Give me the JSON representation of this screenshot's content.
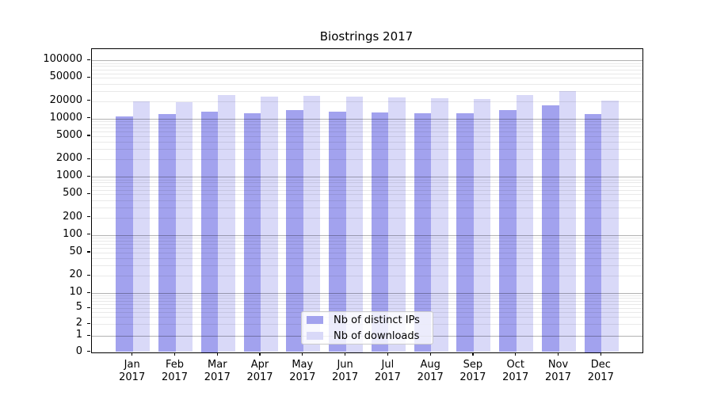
{
  "title": "Biostrings 2017",
  "colors": {
    "distinct_ips": "#a2a2ee",
    "downloads": "#d9d9f8",
    "grid_major": "rgba(0,0,0,0.30)",
    "grid_minor": "rgba(0,0,0,0.085)",
    "axis": "#000000"
  },
  "legend": {
    "items": [
      {
        "label": "Nb of distinct IPs",
        "color_key": "distinct_ips"
      },
      {
        "label": "Nb of downloads",
        "color_key": "downloads"
      }
    ]
  },
  "y_axis": {
    "ticks": [
      {
        "label": "100000",
        "value": 100000
      },
      {
        "label": "50000",
        "value": 50000
      },
      {
        "label": "20000",
        "value": 20000
      },
      {
        "label": "10000",
        "value": 10000
      },
      {
        "label": "5000",
        "value": 5000
      },
      {
        "label": "2000",
        "value": 2000
      },
      {
        "label": "1000",
        "value": 1000
      },
      {
        "label": "500",
        "value": 500
      },
      {
        "label": "200",
        "value": 200
      },
      {
        "label": "100",
        "value": 100
      },
      {
        "label": "50",
        "value": 50
      },
      {
        "label": "20",
        "value": 20
      },
      {
        "label": "10",
        "value": 10
      },
      {
        "label": "5",
        "value": 5
      },
      {
        "label": "2",
        "value": 2
      },
      {
        "label": "1",
        "value": 1
      },
      {
        "label": "0",
        "value": 0
      }
    ]
  },
  "x_axis": {
    "ticks": [
      {
        "line1": "Jan",
        "line2": "2017"
      },
      {
        "line1": "Feb",
        "line2": "2017"
      },
      {
        "line1": "Mar",
        "line2": "2017"
      },
      {
        "line1": "Apr",
        "line2": "2017"
      },
      {
        "line1": "May",
        "line2": "2017"
      },
      {
        "line1": "Jun",
        "line2": "2017"
      },
      {
        "line1": "Jul",
        "line2": "2017"
      },
      {
        "line1": "Aug",
        "line2": "2017"
      },
      {
        "line1": "Sep",
        "line2": "2017"
      },
      {
        "line1": "Oct",
        "line2": "2017"
      },
      {
        "line1": "Nov",
        "line2": "2017"
      },
      {
        "line1": "Dec",
        "line2": "2017"
      }
    ]
  },
  "chart_data": {
    "type": "bar",
    "title": "Biostrings 2017",
    "categories": [
      "Jan 2017",
      "Feb 2017",
      "Mar 2017",
      "Apr 2017",
      "May 2017",
      "Jun 2017",
      "Jul 2017",
      "Aug 2017",
      "Sep 2017",
      "Oct 2017",
      "Nov 2017",
      "Dec 2017"
    ],
    "series": [
      {
        "name": "Nb of distinct IPs",
        "values": [
          11000,
          11900,
          13400,
          12300,
          14200,
          13200,
          12800,
          12500,
          12500,
          14000,
          16700,
          12000
        ]
      },
      {
        "name": "Nb of downloads",
        "values": [
          20000,
          19000,
          25200,
          24100,
          24600,
          23900,
          23400,
          22700,
          21700,
          25700,
          29700,
          20700
        ]
      }
    ],
    "xlabel": "",
    "ylabel": "",
    "yscale": "log-like (symlog with 0 baseline)",
    "yticks": [
      0,
      1,
      2,
      5,
      10,
      20,
      50,
      100,
      200,
      500,
      1000,
      2000,
      5000,
      10000,
      20000,
      50000,
      100000
    ],
    "ylim": [
      0,
      200000
    ],
    "grid": "horizontal major+minor",
    "legend_position": "lower center"
  }
}
